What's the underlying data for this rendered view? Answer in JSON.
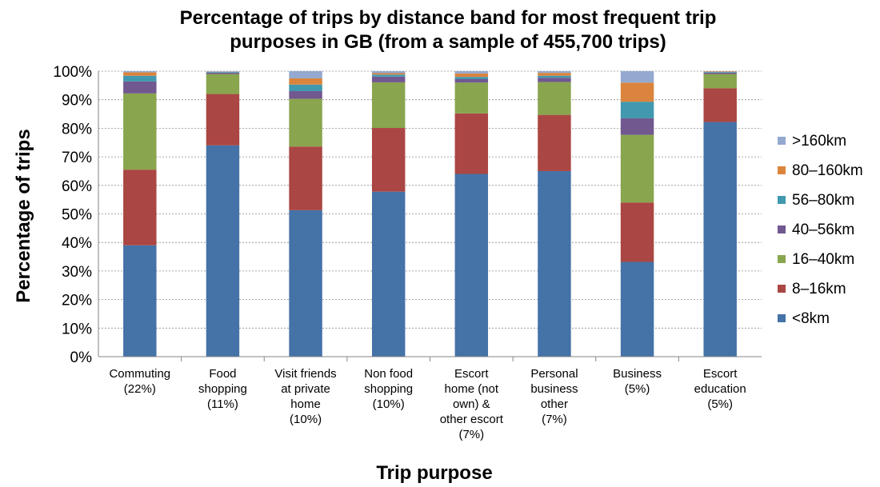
{
  "chart_data": {
    "type": "bar",
    "stacked": true,
    "title_lines": [
      "Percentage of trips by distance band for most frequent trip",
      "purposes in GB (from a sample of 455,700 trips)"
    ],
    "xlabel": "Trip purpose",
    "ylabel": "Percentage of trips",
    "ylim": [
      0,
      100
    ],
    "yticks": [
      "0%",
      "10%",
      "20%",
      "30%",
      "40%",
      "50%",
      "60%",
      "70%",
      "80%",
      "90%",
      "100%"
    ],
    "grid": true,
    "legend_position": "right",
    "categories": [
      [
        "Commuting",
        "(22%)"
      ],
      [
        "Food",
        "shopping",
        "(11%)"
      ],
      [
        "Visit friends",
        "at private",
        "home",
        "(10%)"
      ],
      [
        "Non food",
        "shopping",
        "(10%)"
      ],
      [
        "Escort",
        "home (not",
        "own) &",
        "other escort",
        "(7%)"
      ],
      [
        "Personal",
        "business",
        "other",
        "(7%)"
      ],
      [
        "Business",
        "(5%)"
      ],
      [
        "Escort",
        "education",
        "(5%)"
      ]
    ],
    "series": [
      {
        "name": "<8km",
        "color": "#4572a7",
        "values": [
          39,
          74,
          51.3,
          57.8,
          64,
          65,
          33.2,
          82.2
        ]
      },
      {
        "name": "8–16km",
        "color": "#aa4643",
        "values": [
          26.5,
          18,
          22.3,
          22.3,
          21.2,
          19.7,
          20.8,
          11.8
        ]
      },
      {
        "name": "16–40km",
        "color": "#89a54e",
        "values": [
          26.7,
          7,
          16.7,
          16,
          10.8,
          11.5,
          23.7,
          5
        ]
      },
      {
        "name": "40–56km",
        "color": "#71588f",
        "values": [
          4.2,
          0.5,
          2.7,
          2,
          1.2,
          1.5,
          5.8,
          0.5
        ]
      },
      {
        "name": "56–80km",
        "color": "#4198af",
        "values": [
          2,
          0.2,
          2.3,
          0.7,
          0.8,
          0.7,
          5.8,
          0.2
        ]
      },
      {
        "name": "80–160km",
        "color": "#db843d",
        "values": [
          1.2,
          0.1,
          2.2,
          0.5,
          1.2,
          1,
          6.7,
          0.2
        ]
      },
      {
        "name": ">160km",
        "color": "#93a9cf",
        "values": [
          0.4,
          0.2,
          2.5,
          0.7,
          0.8,
          0.6,
          4,
          0.1
        ]
      }
    ]
  }
}
